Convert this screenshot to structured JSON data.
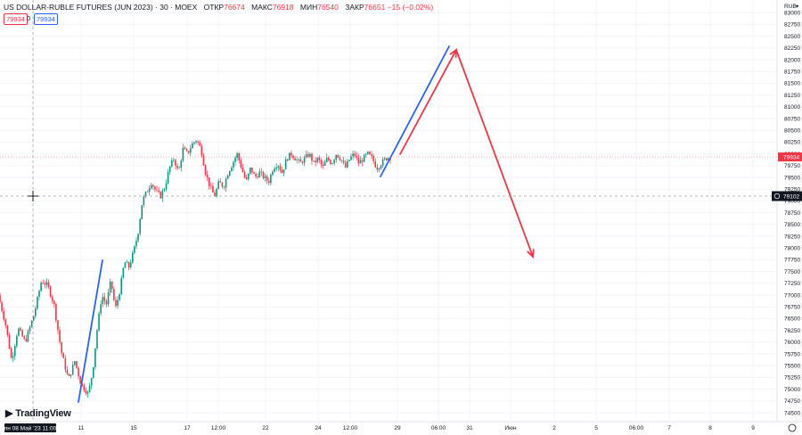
{
  "header": {
    "symbol": "US DOLLAR-RUBLE FUTURES (JUN 2023) · 30 · MOEX",
    "open_label": "ОТКР",
    "open_value": "76674",
    "high_label": "МАКС",
    "high_value": "76918",
    "low_label": "МИН",
    "low_value": "76540",
    "close_label": "ЗАКР",
    "close_value": "76651",
    "change": "−15 (−0.02%)",
    "price_box_red": "79934",
    "qty": "0",
    "price_box_blue": "79934"
  },
  "brand": {
    "name": "TradingView"
  },
  "colors": {
    "up": "#089981",
    "down": "#f23645",
    "blue_line": "#2962ff",
    "red_line": "#f23645"
  },
  "chart_data": {
    "type": "candlestick",
    "title": "US DOLLAR-RUBLE FUTURES (JUN 2023) · 30 · MOEX",
    "currency": "RUB",
    "y_ticks": [
      74500,
      74750,
      75000,
      75250,
      75500,
      75750,
      76000,
      76250,
      76500,
      76750,
      77000,
      77250,
      77500,
      77750,
      78000,
      78250,
      78500,
      78750,
      79000,
      79250,
      79500,
      79750,
      80000,
      80250,
      80500,
      80750,
      81000,
      81250,
      81500,
      81750,
      82000,
      82250,
      82500,
      82750,
      83000
    ],
    "ylim": [
      74400,
      83200
    ],
    "x_ticks": [
      "пн 08 Май '23  11:00",
      "11",
      "15",
      "17",
      "12:00",
      "22",
      "24",
      "12:00",
      "29",
      "06:00",
      "31",
      "Июн",
      "2",
      "5",
      "06:00",
      "7",
      "8",
      "9"
    ],
    "last_price": 79934,
    "crosshair_price": 79102,
    "price_path": [
      [
        0,
        77000
      ],
      [
        0.008,
        76400
      ],
      [
        0.015,
        75600
      ],
      [
        0.022,
        76300
      ],
      [
        0.03,
        76000
      ],
      [
        0.04,
        76600
      ],
      [
        0.048,
        77300
      ],
      [
        0.055,
        77200
      ],
      [
        0.062,
        76800
      ],
      [
        0.07,
        75800
      ],
      [
        0.078,
        75200
      ],
      [
        0.085,
        75600
      ],
      [
        0.092,
        75100
      ],
      [
        0.1,
        74900
      ],
      [
        0.105,
        75400
      ],
      [
        0.11,
        76300
      ],
      [
        0.115,
        77000
      ],
      [
        0.12,
        76800
      ],
      [
        0.125,
        77300
      ],
      [
        0.13,
        76700
      ],
      [
        0.135,
        77100
      ],
      [
        0.14,
        77700
      ],
      [
        0.145,
        77600
      ],
      [
        0.15,
        77900
      ],
      [
        0.155,
        78300
      ],
      [
        0.16,
        79000
      ],
      [
        0.165,
        79200
      ],
      [
        0.17,
        79400
      ],
      [
        0.175,
        79200
      ],
      [
        0.18,
        79100
      ],
      [
        0.185,
        79300
      ],
      [
        0.19,
        79700
      ],
      [
        0.195,
        79900
      ],
      [
        0.2,
        79600
      ],
      [
        0.205,
        80100
      ],
      [
        0.21,
        80000
      ],
      [
        0.215,
        80200
      ],
      [
        0.22,
        80300
      ],
      [
        0.225,
        80100
      ],
      [
        0.23,
        79600
      ],
      [
        0.235,
        79300
      ],
      [
        0.24,
        79100
      ],
      [
        0.245,
        79400
      ],
      [
        0.25,
        79300
      ],
      [
        0.255,
        79600
      ],
      [
        0.26,
        79800
      ],
      [
        0.265,
        80000
      ],
      [
        0.27,
        79700
      ],
      [
        0.275,
        79400
      ],
      [
        0.28,
        79700
      ],
      [
        0.285,
        79500
      ],
      [
        0.29,
        79600
      ],
      [
        0.295,
        79500
      ],
      [
        0.3,
        79400
      ],
      [
        0.305,
        79700
      ],
      [
        0.31,
        79800
      ],
      [
        0.315,
        79600
      ],
      [
        0.32,
        79900
      ],
      [
        0.325,
        80000
      ],
      [
        0.33,
        79900
      ],
      [
        0.335,
        79800
      ],
      [
        0.34,
        79900
      ],
      [
        0.345,
        80000
      ],
      [
        0.35,
        79800
      ],
      [
        0.355,
        79900
      ],
      [
        0.36,
        79700
      ],
      [
        0.365,
        79900
      ],
      [
        0.37,
        79800
      ],
      [
        0.375,
        80000
      ],
      [
        0.38,
        79900
      ],
      [
        0.385,
        79700
      ],
      [
        0.39,
        79900
      ],
      [
        0.395,
        80000
      ],
      [
        0.4,
        79800
      ],
      [
        0.405,
        79900
      ],
      [
        0.41,
        80000
      ],
      [
        0.415,
        79900
      ],
      [
        0.42,
        79700
      ],
      [
        0.425,
        79800
      ],
      [
        0.43,
        79900
      ],
      [
        0.435,
        79934
      ]
    ],
    "drawings": [
      {
        "color": "blue",
        "from": {
          "date": "11",
          "price": 74700
        },
        "to": {
          "date": "11",
          "price": 77750
        }
      },
      {
        "color": "blue",
        "from": {
          "date": "29",
          "price": 79600
        },
        "to": {
          "date": "31",
          "price": 82250
        }
      },
      {
        "color": "red",
        "from": {
          "date": "29",
          "price": 80000
        },
        "to": {
          "date": "31",
          "price": 82250
        }
      },
      {
        "color": "red",
        "from": {
          "date": "31",
          "price": 82250
        },
        "to": {
          "date": "Июн",
          "price": 77850
        }
      }
    ]
  }
}
